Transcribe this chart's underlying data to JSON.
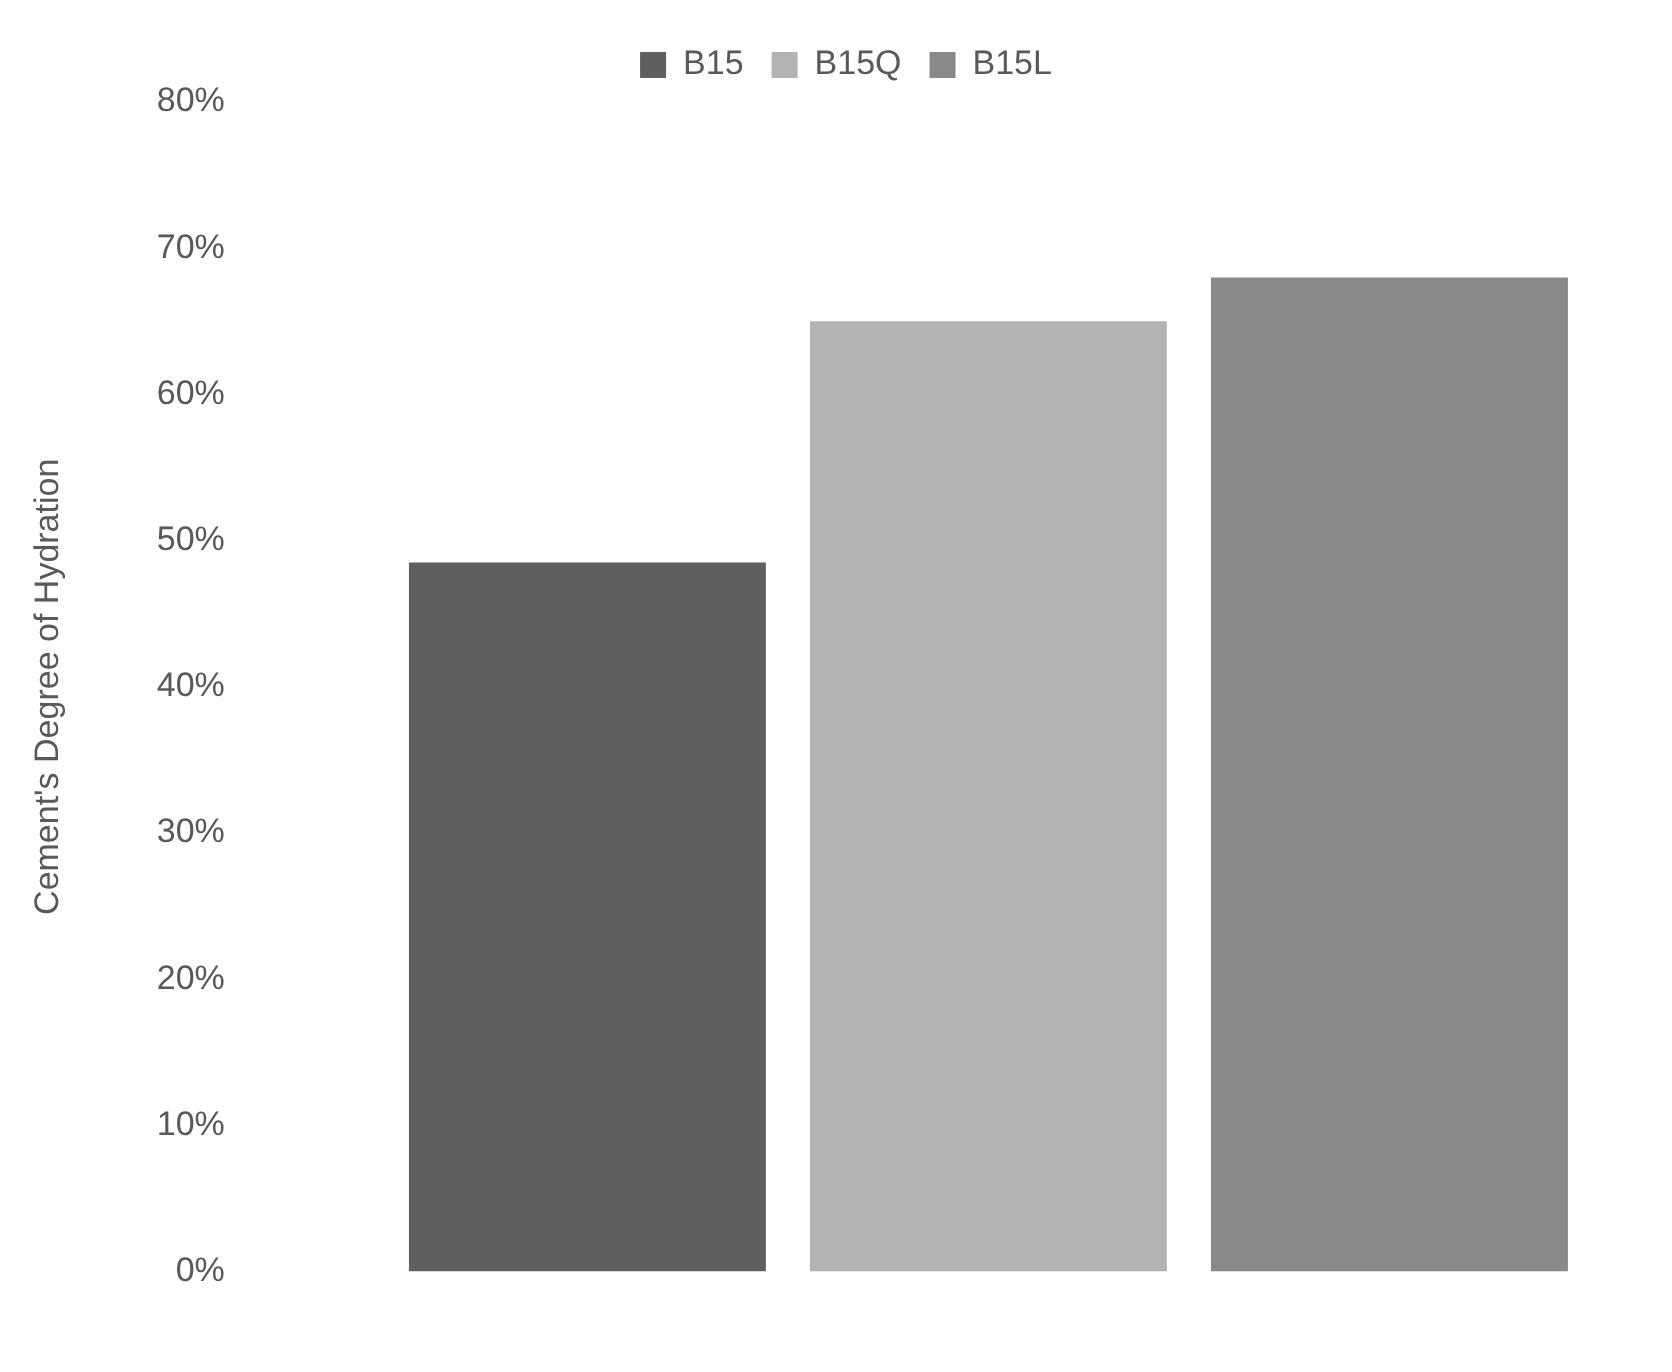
{
  "chart_data": {
    "type": "bar",
    "ylabel": "Cement's Degree of Hydration",
    "categories": [
      null
    ],
    "series": [
      {
        "name": "B15",
        "color": "#5f5f5f",
        "values": [
          48.5
        ]
      },
      {
        "name": "B15Q",
        "color": "#b3b3b3",
        "values": [
          65
        ]
      },
      {
        "name": "B15L",
        "color": "#898989",
        "values": [
          68
        ]
      }
    ],
    "ylim": [
      0,
      80
    ],
    "yticks": [
      {
        "value": 0,
        "label": "0%"
      },
      {
        "value": 10,
        "label": "10%"
      },
      {
        "value": 20,
        "label": "20%"
      },
      {
        "value": 30,
        "label": "30%"
      },
      {
        "value": 40,
        "label": "40%"
      },
      {
        "value": 50,
        "label": "50%"
      },
      {
        "value": 60,
        "label": "60%"
      },
      {
        "value": 70,
        "label": "70%"
      },
      {
        "value": 80,
        "label": "80%"
      }
    ],
    "grid": false,
    "legend": "top"
  }
}
